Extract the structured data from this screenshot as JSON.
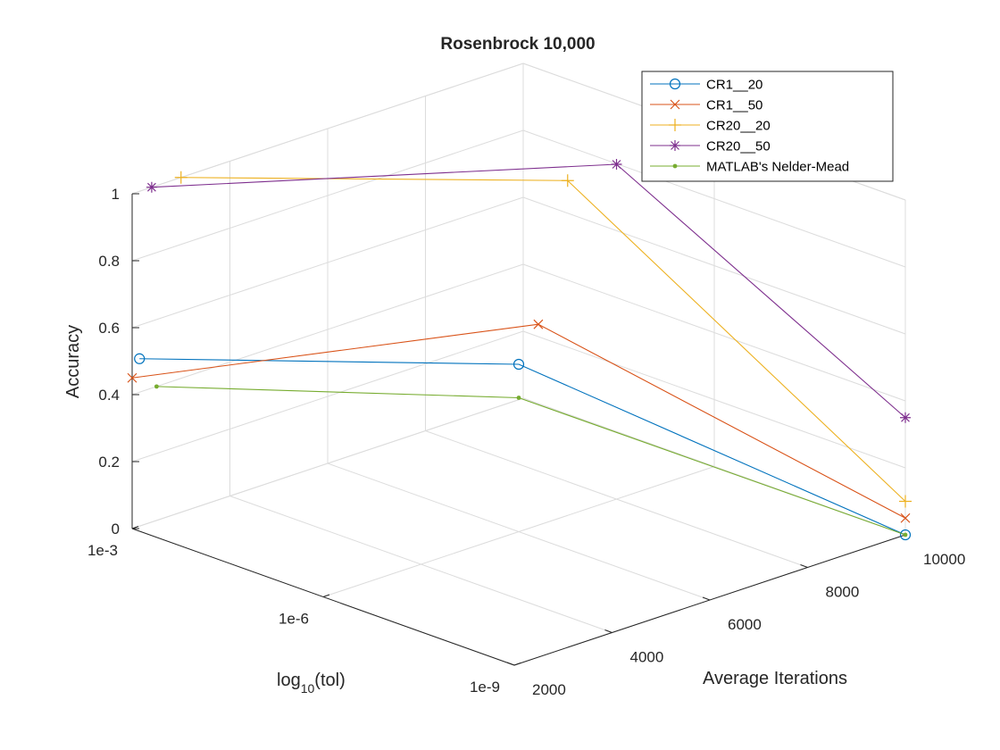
{
  "chart_data": {
    "type": "line",
    "title": "Rosenbrock 10,000",
    "xlabel": "log10(tol)",
    "ylabel": "Average Iterations",
    "zlabel": "Accuracy",
    "x_ticks": [
      "1e-3",
      "1e-6",
      "1e-9"
    ],
    "y_ticks": [
      "2000",
      "4000",
      "6000",
      "8000",
      "10000"
    ],
    "z_ticks": [
      "0",
      "0.2",
      "0.4",
      "0.6",
      "0.8",
      "1"
    ],
    "x_categories": [
      "1e-3",
      "1e-6",
      "1e-9"
    ],
    "ylim": [
      2000,
      10000
    ],
    "zlim": [
      0,
      1
    ],
    "grid": true,
    "legend_position": "top-right",
    "series": [
      {
        "name": "CR1__20",
        "color": "#0072BD",
        "marker": "circle",
        "points": [
          {
            "x": "1e-3",
            "y": 2150,
            "z": 0.5
          },
          {
            "x": "1e-6",
            "y": 6000,
            "z": 0.5
          },
          {
            "x": "1e-9",
            "y": 10000,
            "z": 0.0
          }
        ]
      },
      {
        "name": "CR1__50",
        "color": "#D95319",
        "marker": "x",
        "points": [
          {
            "x": "1e-3",
            "y": 2000,
            "z": 0.45
          },
          {
            "x": "1e-6",
            "y": 6400,
            "z": 0.6
          },
          {
            "x": "1e-9",
            "y": 10000,
            "z": 0.05
          }
        ]
      },
      {
        "name": "CR20__20",
        "color": "#EDB120",
        "marker": "plus",
        "points": [
          {
            "x": "1e-3",
            "y": 3000,
            "z": 1.0
          },
          {
            "x": "1e-6",
            "y": 7000,
            "z": 1.0
          },
          {
            "x": "1e-9",
            "y": 10000,
            "z": 0.1
          }
        ]
      },
      {
        "name": "CR20__50",
        "color": "#7E2F8E",
        "marker": "star",
        "points": [
          {
            "x": "1e-3",
            "y": 2400,
            "z": 1.0
          },
          {
            "x": "1e-6",
            "y": 8000,
            "z": 1.0
          },
          {
            "x": "1e-9",
            "y": 10000,
            "z": 0.35
          }
        ]
      },
      {
        "name": "MATLAB's Nelder-Mead",
        "color": "#77AC30",
        "marker": "dot",
        "points": [
          {
            "x": "1e-3",
            "y": 2500,
            "z": 0.4
          },
          {
            "x": "1e-6",
            "y": 6000,
            "z": 0.4
          },
          {
            "x": "1e-9",
            "y": 10000,
            "z": 0.0
          }
        ]
      }
    ]
  }
}
